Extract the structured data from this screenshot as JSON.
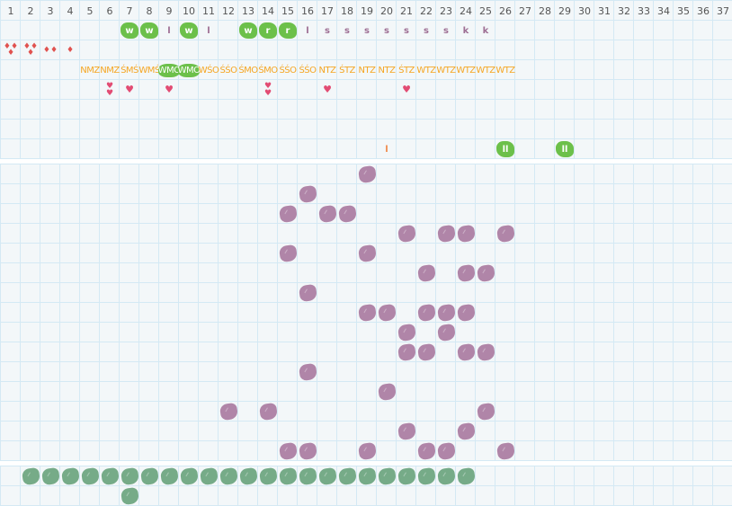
{
  "colors": {
    "grid_line": "#d4e9f4",
    "grid_bg": "#f3f7f9",
    "green_label": "#6cc04a",
    "purple_blob": "#b085a8",
    "green_blob": "#76ab88",
    "code_orange": "#f5a623",
    "letter_purple": "#9e6f94",
    "drop_red": "#e0524f",
    "heart_pink": "#e24c73",
    "orange_mark": "#f08a4b"
  },
  "header": {
    "columns": [
      "1",
      "2",
      "3",
      "4",
      "5",
      "6",
      "7",
      "8",
      "9",
      "10",
      "11",
      "12",
      "13",
      "14",
      "15",
      "16",
      "17",
      "18",
      "19",
      "20",
      "21",
      "22",
      "23",
      "24",
      "25",
      "26",
      "27",
      "28",
      "29",
      "30",
      "31",
      "32",
      "33",
      "34",
      "35",
      "36",
      "37"
    ]
  },
  "top": {
    "row_letters": [
      {
        "col": 7,
        "text": "w",
        "style": "green"
      },
      {
        "col": 8,
        "text": "w",
        "style": "green"
      },
      {
        "col": 9,
        "text": "l",
        "style": "plain"
      },
      {
        "col": 10,
        "text": "w",
        "style": "green"
      },
      {
        "col": 11,
        "text": "l",
        "style": "plain"
      },
      {
        "col": 13,
        "text": "w",
        "style": "green"
      },
      {
        "col": 14,
        "text": "r",
        "style": "green"
      },
      {
        "col": 15,
        "text": "r",
        "style": "green"
      },
      {
        "col": 16,
        "text": "l",
        "style": "plain"
      },
      {
        "col": 17,
        "text": "s",
        "style": "plain"
      },
      {
        "col": 18,
        "text": "s",
        "style": "plain"
      },
      {
        "col": 19,
        "text": "s",
        "style": "plain"
      },
      {
        "col": 20,
        "text": "s",
        "style": "plain"
      },
      {
        "col": 21,
        "text": "s",
        "style": "plain"
      },
      {
        "col": 22,
        "text": "s",
        "style": "plain"
      },
      {
        "col": 23,
        "text": "s",
        "style": "plain"
      },
      {
        "col": 24,
        "text": "k",
        "style": "plain"
      },
      {
        "col": 25,
        "text": "k",
        "style": "plain"
      }
    ],
    "row_drops": [
      {
        "col": 1,
        "count": 3
      },
      {
        "col": 2,
        "count": 3
      },
      {
        "col": 3,
        "count": 2
      },
      {
        "col": 4,
        "count": 1
      }
    ],
    "row_codes": [
      {
        "col": 5,
        "text": "NMZ"
      },
      {
        "col": 6,
        "text": "NMZ"
      },
      {
        "col": 7,
        "text": "ŚMŚ"
      },
      {
        "col": 8,
        "text": "WMŚ"
      },
      {
        "col": 9,
        "text": "WMO",
        "highlight": true
      },
      {
        "col": 10,
        "text": "WMO",
        "highlight": true
      },
      {
        "col": 11,
        "text": "WŚO"
      },
      {
        "col": 12,
        "text": "ŚŚO"
      },
      {
        "col": 13,
        "text": "ŚMO"
      },
      {
        "col": 14,
        "text": "ŚMO"
      },
      {
        "col": 15,
        "text": "ŚŚO"
      },
      {
        "col": 16,
        "text": "ŚŚO"
      },
      {
        "col": 17,
        "text": "NTZ"
      },
      {
        "col": 18,
        "text": "ŚTZ"
      },
      {
        "col": 19,
        "text": "NTZ"
      },
      {
        "col": 20,
        "text": "NTZ"
      },
      {
        "col": 21,
        "text": "ŚTZ"
      },
      {
        "col": 22,
        "text": "WTZ"
      },
      {
        "col": 23,
        "text": "WTZ"
      },
      {
        "col": 24,
        "text": "WTZ"
      },
      {
        "col": 25,
        "text": "WTZ"
      },
      {
        "col": 26,
        "text": "WTZ"
      }
    ],
    "row_hearts": [
      {
        "col": 6,
        "count": 2
      },
      {
        "col": 7,
        "count": 1
      },
      {
        "col": 9,
        "count": 1
      },
      {
        "col": 14,
        "count": 2
      },
      {
        "col": 17,
        "count": 1
      },
      {
        "col": 21,
        "count": 1
      }
    ],
    "row_marks": [
      {
        "col": 20,
        "text": "l",
        "style": "orange"
      },
      {
        "col": 26,
        "text": "ll",
        "style": "green"
      },
      {
        "col": 29,
        "text": "ll",
        "style": "green"
      }
    ]
  },
  "middle": {
    "purple_blobs": [
      [
        19
      ],
      [
        16
      ],
      [
        15,
        17,
        18
      ],
      [
        21,
        23,
        24,
        26
      ],
      [
        15,
        19
      ],
      [
        22,
        24,
        25
      ],
      [
        16
      ],
      [
        19,
        20,
        22,
        23,
        24
      ],
      [
        21,
        23
      ],
      [
        21,
        22,
        24,
        25
      ],
      [
        16
      ],
      [
        20
      ],
      [
        12,
        14,
        25
      ],
      [
        21,
        24
      ],
      [
        15,
        16,
        19,
        22,
        23,
        26
      ]
    ]
  },
  "bottom": {
    "green_blobs": [
      [
        2,
        3,
        4,
        5,
        6,
        7,
        8,
        9,
        10,
        11,
        12,
        13,
        14,
        15,
        16,
        17,
        18,
        19,
        20,
        21,
        22,
        23,
        24
      ],
      [
        7
      ]
    ]
  }
}
